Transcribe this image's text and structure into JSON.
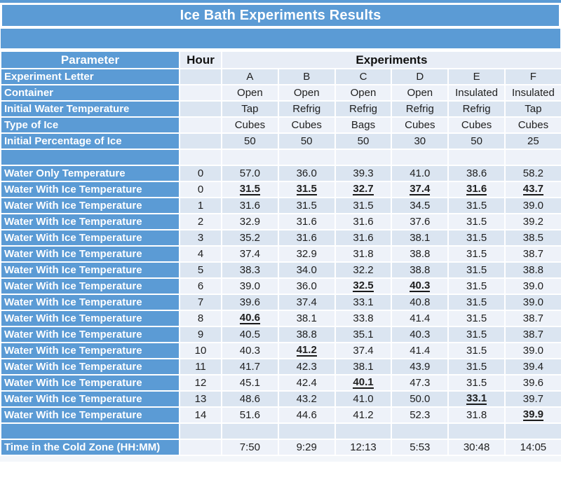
{
  "title": "Ice Bath Experiments Results",
  "header": {
    "parameter": "Parameter",
    "hour": "Hour",
    "experiments": "Experiments"
  },
  "colors": {
    "blue": "#5b9bd5",
    "band_blue": "#dbe5f1",
    "band_white": "#eef2f9",
    "header_light": "#e8edf6",
    "label_text": "#ffffff",
    "value_text": "#202020",
    "underline": "#1a1a1a"
  },
  "chart_data": {
    "type": "table",
    "title": "Ice Bath Experiments Results",
    "columns": [
      "Parameter",
      "Hour",
      "A",
      "B",
      "C",
      "D",
      "E",
      "F"
    ],
    "note_marks": "marks=true means the value is shown bold and underlined in the table",
    "rows": [
      {
        "type": "info",
        "label": "Experiment Letter",
        "hour": "",
        "values": [
          "A",
          "B",
          "C",
          "D",
          "E",
          "F"
        ]
      },
      {
        "type": "info",
        "label": "Container",
        "hour": "",
        "values": [
          "Open",
          "Open",
          "Open",
          "Open",
          "Insulated",
          "Insulated"
        ]
      },
      {
        "type": "info",
        "label": "Initial Water Temperature",
        "hour": "",
        "values": [
          "Tap",
          "Refrig",
          "Refrig",
          "Refrig",
          "Refrig",
          "Tap"
        ]
      },
      {
        "type": "info",
        "label": "Type of Ice",
        "hour": "",
        "values": [
          "Cubes",
          "Cubes",
          "Bags",
          "Cubes",
          "Cubes",
          "Cubes"
        ]
      },
      {
        "type": "info",
        "label": "Initial Percentage of Ice",
        "hour": "",
        "values": [
          "50",
          "50",
          "50",
          "30",
          "50",
          "25"
        ]
      },
      {
        "type": "blank",
        "label": "",
        "hour": "",
        "values": [
          "",
          "",
          "",
          "",
          "",
          ""
        ]
      },
      {
        "type": "data",
        "label": "Water Only Temperature",
        "hour": "0",
        "values": [
          "57.0",
          "36.0",
          "39.3",
          "41.0",
          "38.6",
          "58.2"
        ]
      },
      {
        "type": "data",
        "label": "Water With Ice Temperature",
        "hour": "0",
        "values": [
          "31.5",
          "31.5",
          "32.7",
          "37.4",
          "31.6",
          "43.7"
        ],
        "marks": [
          true,
          true,
          true,
          true,
          true,
          true
        ]
      },
      {
        "type": "data",
        "label": "Water With Ice Temperature",
        "hour": "1",
        "values": [
          "31.6",
          "31.5",
          "31.5",
          "34.5",
          "31.5",
          "39.0"
        ]
      },
      {
        "type": "data",
        "label": "Water With Ice Temperature",
        "hour": "2",
        "values": [
          "32.9",
          "31.6",
          "31.6",
          "37.6",
          "31.5",
          "39.2"
        ]
      },
      {
        "type": "data",
        "label": "Water With Ice Temperature",
        "hour": "3",
        "values": [
          "35.2",
          "31.6",
          "31.6",
          "38.1",
          "31.5",
          "38.5"
        ]
      },
      {
        "type": "data",
        "label": "Water With Ice Temperature",
        "hour": "4",
        "values": [
          "37.4",
          "32.9",
          "31.8",
          "38.8",
          "31.5",
          "38.7"
        ]
      },
      {
        "type": "data",
        "label": "Water With Ice Temperature",
        "hour": "5",
        "values": [
          "38.3",
          "34.0",
          "32.2",
          "38.8",
          "31.5",
          "38.8"
        ]
      },
      {
        "type": "data",
        "label": "Water With Ice Temperature",
        "hour": "6",
        "values": [
          "39.0",
          "36.0",
          "32.5",
          "40.3",
          "31.5",
          "39.0"
        ],
        "marks": [
          false,
          false,
          true,
          true,
          false,
          false
        ]
      },
      {
        "type": "data",
        "label": "Water With Ice Temperature",
        "hour": "7",
        "values": [
          "39.6",
          "37.4",
          "33.1",
          "40.8",
          "31.5",
          "39.0"
        ]
      },
      {
        "type": "data",
        "label": "Water With Ice Temperature",
        "hour": "8",
        "values": [
          "40.6",
          "38.1",
          "33.8",
          "41.4",
          "31.5",
          "38.7"
        ],
        "marks": [
          true,
          false,
          false,
          false,
          false,
          false
        ]
      },
      {
        "type": "data",
        "label": "Water With Ice Temperature",
        "hour": "9",
        "values": [
          "40.5",
          "38.8",
          "35.1",
          "40.3",
          "31.5",
          "38.7"
        ]
      },
      {
        "type": "data",
        "label": "Water With Ice Temperature",
        "hour": "10",
        "values": [
          "40.3",
          "41.2",
          "37.4",
          "41.4",
          "31.5",
          "39.0"
        ],
        "marks": [
          false,
          true,
          false,
          false,
          false,
          false
        ]
      },
      {
        "type": "data",
        "label": "Water With Ice Temperature",
        "hour": "11",
        "values": [
          "41.7",
          "42.3",
          "38.1",
          "43.9",
          "31.5",
          "39.4"
        ]
      },
      {
        "type": "data",
        "label": "Water With Ice Temperature",
        "hour": "12",
        "values": [
          "45.1",
          "42.4",
          "40.1",
          "47.3",
          "31.5",
          "39.6"
        ],
        "marks": [
          false,
          false,
          true,
          false,
          false,
          false
        ]
      },
      {
        "type": "data",
        "label": "Water With Ice Temperature",
        "hour": "13",
        "values": [
          "48.6",
          "43.2",
          "41.0",
          "50.0",
          "33.1",
          "39.7"
        ],
        "marks": [
          false,
          false,
          false,
          false,
          true,
          false
        ]
      },
      {
        "type": "data",
        "label": "Water With Ice Temperature",
        "hour": "14",
        "values": [
          "51.6",
          "44.6",
          "41.2",
          "52.3",
          "31.8",
          "39.9"
        ],
        "marks": [
          false,
          false,
          false,
          false,
          false,
          true
        ]
      },
      {
        "type": "blank",
        "label": "",
        "hour": "",
        "values": [
          "",
          "",
          "",
          "",
          "",
          ""
        ]
      },
      {
        "type": "footer",
        "label": "Time in the Cold Zone (HH:MM)",
        "hour": "",
        "values": [
          "7:50",
          "9:29",
          "12:13",
          "5:53",
          "30:48",
          "14:05"
        ]
      }
    ]
  }
}
